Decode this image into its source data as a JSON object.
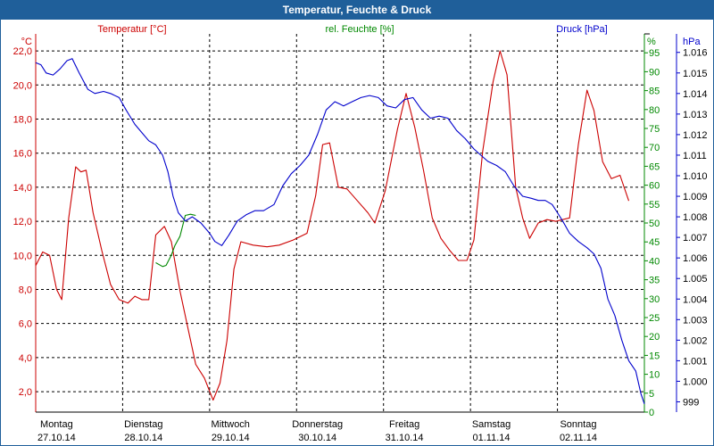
{
  "window": {
    "title": "Temperatur, Feuchte & Druck"
  },
  "colors": {
    "temperature": "#cc0000",
    "humidity": "#008800",
    "pressure": "#0000cc",
    "frame": "#1f5f9a",
    "grid": "#000000"
  },
  "chart_data": {
    "type": "line",
    "title": "Temperatur, Feuchte & Druck",
    "axes": {
      "left": {
        "label": "Temperatur [°C]",
        "unit": "°C",
        "min": 0.8,
        "max": 23.0,
        "ticks": [
          "2,0",
          "4,0",
          "6,0",
          "8,0",
          "10,0",
          "12,0",
          "14,0",
          "16,0",
          "18,0",
          "20,0",
          "22,0"
        ],
        "tick_values": [
          2,
          4,
          6,
          8,
          10,
          12,
          14,
          16,
          18,
          20,
          22
        ]
      },
      "right1": {
        "label": "rel. Feuchte [%]",
        "unit": "%",
        "min": 0,
        "max": 100,
        "ticks": [
          "0",
          "5",
          "10",
          "15",
          "20",
          "25",
          "30",
          "35",
          "40",
          "45",
          "50",
          "55",
          "60",
          "65",
          "70",
          "75",
          "80",
          "85",
          "90",
          "95"
        ],
        "tick_values": [
          0,
          5,
          10,
          15,
          20,
          25,
          30,
          35,
          40,
          45,
          50,
          55,
          60,
          65,
          70,
          75,
          80,
          85,
          90,
          95
        ]
      },
      "right2": {
        "label": "Druck [hPa]",
        "unit": "hPa",
        "min": 998.5,
        "max": 1016.9,
        "ticks": [
          "999",
          "1.000",
          "1.001",
          "1.002",
          "1.003",
          "1.004",
          "1.005",
          "1.006",
          "1.007",
          "1.008",
          "1.009",
          "1.010",
          "1.011",
          "1.012",
          "1.013",
          "1.014",
          "1.015",
          "1.016"
        ],
        "tick_values": [
          999,
          1000,
          1001,
          1002,
          1003,
          1004,
          1005,
          1006,
          1007,
          1008,
          1009,
          1010,
          1011,
          1012,
          1013,
          1014,
          1015,
          1016
        ]
      }
    },
    "x": {
      "min": 0,
      "max": 7.0,
      "unit": "days since 27.10.14 00:00"
    },
    "days": [
      {
        "weekday": "Montag",
        "date": "27.10.14"
      },
      {
        "weekday": "Dienstag",
        "date": "28.10.14"
      },
      {
        "weekday": "Mittwoch",
        "date": "29.10.14"
      },
      {
        "weekday": "Donnerstag",
        "date": "30.10.14"
      },
      {
        "weekday": "Freitag",
        "date": "31.10.14"
      },
      {
        "weekday": "Samstag",
        "date": "01.11.14"
      },
      {
        "weekday": "Sonntag",
        "date": "02.11.14"
      }
    ],
    "series": [
      {
        "name": "Temperatur [°C]",
        "axis": "left",
        "color": "#cc0000",
        "points": [
          [
            0,
            9.4
          ],
          [
            0.08,
            10.2
          ],
          [
            0.16,
            10.0
          ],
          [
            0.24,
            8.0
          ],
          [
            0.3,
            7.4
          ],
          [
            0.38,
            12.2
          ],
          [
            0.46,
            15.2
          ],
          [
            0.52,
            14.9
          ],
          [
            0.58,
            15.0
          ],
          [
            0.66,
            12.5
          ],
          [
            0.76,
            10.3
          ],
          [
            0.86,
            8.3
          ],
          [
            0.96,
            7.4
          ],
          [
            1.06,
            7.2
          ],
          [
            1.14,
            7.6
          ],
          [
            1.22,
            7.4
          ],
          [
            1.3,
            7.4
          ],
          [
            1.38,
            11.2
          ],
          [
            1.48,
            11.7
          ],
          [
            1.56,
            10.8
          ],
          [
            1.66,
            7.9
          ],
          [
            1.76,
            5.5
          ],
          [
            1.84,
            3.6
          ],
          [
            1.94,
            2.8
          ],
          [
            2.04,
            1.5
          ],
          [
            2.12,
            2.5
          ],
          [
            2.2,
            5.0
          ],
          [
            2.28,
            9.2
          ],
          [
            2.36,
            10.8
          ],
          [
            2.5,
            10.6
          ],
          [
            2.66,
            10.5
          ],
          [
            2.8,
            10.6
          ],
          [
            2.96,
            10.9
          ],
          [
            3.12,
            11.3
          ],
          [
            3.22,
            13.5
          ],
          [
            3.3,
            16.5
          ],
          [
            3.38,
            16.6
          ],
          [
            3.48,
            14.0
          ],
          [
            3.58,
            13.9
          ],
          [
            3.7,
            13.2
          ],
          [
            3.82,
            12.5
          ],
          [
            3.9,
            11.9
          ],
          [
            4.02,
            13.8
          ],
          [
            4.16,
            17.4
          ],
          [
            4.26,
            19.5
          ],
          [
            4.36,
            17.5
          ],
          [
            4.46,
            15.0
          ],
          [
            4.56,
            12.2
          ],
          [
            4.66,
            11.0
          ],
          [
            4.76,
            10.3
          ],
          [
            4.86,
            9.7
          ],
          [
            4.96,
            9.7
          ],
          [
            5.04,
            10.9
          ],
          [
            5.14,
            16.1
          ],
          [
            5.26,
            20.2
          ],
          [
            5.34,
            22.0
          ],
          [
            5.42,
            20.6
          ],
          [
            5.52,
            14.0
          ],
          [
            5.6,
            12.2
          ],
          [
            5.68,
            11.0
          ],
          [
            5.78,
            11.9
          ],
          [
            5.88,
            12.1
          ],
          [
            5.98,
            12.0
          ],
          [
            6.06,
            12.1
          ],
          [
            6.14,
            12.2
          ],
          [
            6.24,
            16.5
          ],
          [
            6.34,
            19.7
          ],
          [
            6.42,
            18.5
          ],
          [
            6.52,
            15.5
          ],
          [
            6.62,
            14.5
          ],
          [
            6.72,
            14.7
          ],
          [
            6.82,
            13.2
          ]
        ]
      },
      {
        "name": "rel. Feuchte [%]",
        "axis": "right1",
        "color": "#008800",
        "points": [
          [
            1.38,
            39.5
          ],
          [
            1.46,
            38.5
          ],
          [
            1.5,
            38.8
          ],
          [
            1.56,
            41.5
          ],
          [
            1.6,
            44
          ],
          [
            1.66,
            46.5
          ],
          [
            1.72,
            52
          ],
          [
            1.78,
            52.3
          ],
          [
            1.84,
            52
          ]
        ]
      },
      {
        "name": "Druck [hPa]",
        "axis": "right2",
        "color": "#0000cc",
        "points": [
          [
            0,
            1015.5
          ],
          [
            0.06,
            1015.4
          ],
          [
            0.12,
            1015.0
          ],
          [
            0.2,
            1014.9
          ],
          [
            0.28,
            1015.2
          ],
          [
            0.36,
            1015.6
          ],
          [
            0.42,
            1015.7
          ],
          [
            0.5,
            1015.0
          ],
          [
            0.6,
            1014.2
          ],
          [
            0.68,
            1014.0
          ],
          [
            0.78,
            1014.1
          ],
          [
            0.86,
            1014.0
          ],
          [
            0.96,
            1013.8
          ],
          [
            1.04,
            1013.2
          ],
          [
            1.14,
            1012.5
          ],
          [
            1.24,
            1012.0
          ],
          [
            1.3,
            1011.7
          ],
          [
            1.38,
            1011.5
          ],
          [
            1.46,
            1011.0
          ],
          [
            1.52,
            1010.2
          ],
          [
            1.58,
            1009.0
          ],
          [
            1.64,
            1008.2
          ],
          [
            1.72,
            1007.8
          ],
          [
            1.8,
            1008.0
          ],
          [
            1.9,
            1007.7
          ],
          [
            2.0,
            1007.2
          ],
          [
            2.06,
            1006.8
          ],
          [
            2.14,
            1006.6
          ],
          [
            2.22,
            1007.1
          ],
          [
            2.32,
            1007.8
          ],
          [
            2.42,
            1008.1
          ],
          [
            2.52,
            1008.3
          ],
          [
            2.62,
            1008.3
          ],
          [
            2.74,
            1008.6
          ],
          [
            2.84,
            1009.5
          ],
          [
            2.94,
            1010.1
          ],
          [
            3.04,
            1010.5
          ],
          [
            3.14,
            1011.0
          ],
          [
            3.24,
            1012.0
          ],
          [
            3.34,
            1013.2
          ],
          [
            3.44,
            1013.6
          ],
          [
            3.54,
            1013.4
          ],
          [
            3.64,
            1013.6
          ],
          [
            3.74,
            1013.8
          ],
          [
            3.84,
            1013.9
          ],
          [
            3.94,
            1013.8
          ],
          [
            4.04,
            1013.4
          ],
          [
            4.14,
            1013.3
          ],
          [
            4.24,
            1013.7
          ],
          [
            4.34,
            1013.8
          ],
          [
            4.44,
            1013.2
          ],
          [
            4.54,
            1012.8
          ],
          [
            4.64,
            1012.9
          ],
          [
            4.74,
            1012.8
          ],
          [
            4.84,
            1012.2
          ],
          [
            4.94,
            1011.8
          ],
          [
            5.04,
            1011.3
          ],
          [
            5.12,
            1011.0
          ],
          [
            5.2,
            1010.7
          ],
          [
            5.3,
            1010.5
          ],
          [
            5.4,
            1010.2
          ],
          [
            5.5,
            1009.5
          ],
          [
            5.6,
            1009.0
          ],
          [
            5.7,
            1008.9
          ],
          [
            5.78,
            1008.8
          ],
          [
            5.86,
            1008.8
          ],
          [
            5.94,
            1008.6
          ],
          [
            6.0,
            1008.2
          ],
          [
            6.06,
            1007.8
          ],
          [
            6.14,
            1007.2
          ],
          [
            6.24,
            1006.8
          ],
          [
            6.34,
            1006.5
          ],
          [
            6.42,
            1006.2
          ],
          [
            6.5,
            1005.5
          ],
          [
            6.58,
            1004.0
          ],
          [
            6.66,
            1003.2
          ],
          [
            6.74,
            1002.0
          ],
          [
            6.82,
            1001.0
          ],
          [
            6.9,
            1000.5
          ],
          [
            6.96,
            999.4
          ],
          [
            7.0,
            998.9
          ]
        ]
      }
    ]
  }
}
